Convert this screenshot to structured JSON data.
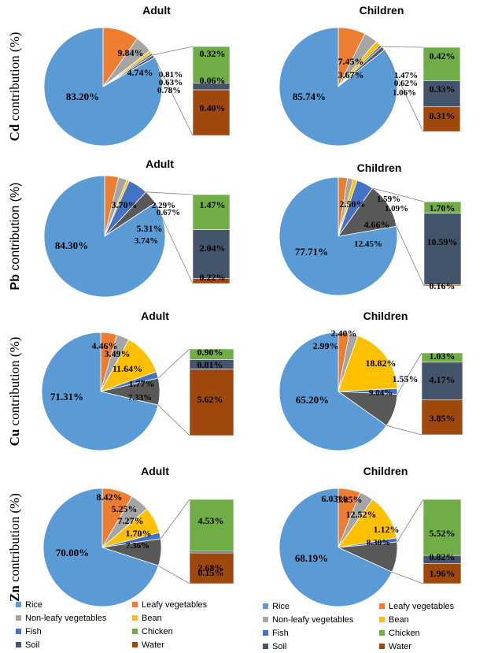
{
  "colors": {
    "Rice": "#5b9bd5",
    "Leafy vegetables": "#ed7d31",
    "Non-leafy vegetables": "#a5a5a5",
    "Bean": "#ffc000",
    "Fish": "#4472c4",
    "Chicken": "#70ad47",
    "Soil": "#44546a",
    "Water": "#9e480e"
  },
  "legend": [
    "Rice",
    "Leafy vegetables",
    "Non-leafy vegetables",
    "Bean",
    "Fish",
    "Chicken",
    "Soil",
    "Water"
  ],
  "chart_data": [
    {
      "type": "pie",
      "metal": "Cd",
      "title": "Adult",
      "ylabel_element": "Cd",
      "ylabel_rest": " contribution (%)",
      "categories": [
        "Rice",
        "Leafy vegetables",
        "Non-leafy vegetables",
        "Bean",
        "Fish",
        "Chicken",
        "Soil",
        "Water"
      ],
      "values": [
        83.2,
        9.84,
        4.74,
        0.81,
        0.63,
        0.32,
        0.06,
        0.4
      ],
      "labels": [
        "83.20%",
        "9.84%",
        "4.74%",
        "0.81%",
        "0.63%",
        "0.32%",
        "0.06%",
        "0.40%"
      ],
      "other_label": "0.78%",
      "bar": [
        "Chicken",
        "Soil",
        "Water"
      ]
    },
    {
      "type": "pie",
      "metal": "Cd",
      "title": "Children",
      "categories": [
        "Rice",
        "Leafy vegetables",
        "Non-leafy vegetables",
        "Bean",
        "Fish",
        "Chicken",
        "Soil",
        "Water"
      ],
      "values": [
        85.74,
        7.45,
        3.67,
        1.47,
        0.62,
        0.42,
        0.33,
        0.31
      ],
      "labels": [
        "85.74%",
        "7.45%",
        "3.67%",
        "1.47%",
        "0.62%",
        "0.42%",
        "0.33%",
        "0.31%"
      ],
      "other_label": "1.06%",
      "bar": [
        "Chicken",
        "Soil",
        "Water"
      ]
    },
    {
      "type": "pie",
      "metal": "Pb",
      "title": "Adult",
      "ylabel_element": "Pb",
      "ylabel_rest": " contribution (%)",
      "categories": [
        "Rice",
        "Leafy vegetables",
        "Non-leafy vegetables",
        "Bean",
        "Fish",
        "Chicken",
        "Soil",
        "Water"
      ],
      "values": [
        84.3,
        3.7,
        2.29,
        0.67,
        5.31,
        1.47,
        2.04,
        0.22
      ],
      "labels": [
        "84.30%",
        "3.70%",
        "2.29%",
        "0.67%",
        "5.31%",
        "1.47%",
        "2.04%",
        "0.22%"
      ],
      "other_label": "3.74%",
      "bar": [
        "Chicken",
        "Soil",
        "Water"
      ]
    },
    {
      "type": "pie",
      "metal": "Pb",
      "title": "Children",
      "categories": [
        "Rice",
        "Leafy vegetables",
        "Non-leafy vegetables",
        "Bean",
        "Fish",
        "Chicken",
        "Soil",
        "Water"
      ],
      "values": [
        77.71,
        2.5,
        1.59,
        1.09,
        4.66,
        1.7,
        10.59,
        0.16
      ],
      "labels": [
        "77.71%",
        "2.50%",
        "1.59%",
        "1.09%",
        "4.66%",
        "1.70%",
        "10.59%",
        "0.16%"
      ],
      "other_label": "12.45%",
      "bar": [
        "Chicken",
        "Soil",
        "Water"
      ]
    },
    {
      "type": "pie",
      "metal": "Cu",
      "title": "Adult",
      "ylabel_element": "Cu",
      "ylabel_rest": " contribution (%)",
      "categories": [
        "Rice",
        "Leafy vegetables",
        "Non-leafy vegetables",
        "Bean",
        "Fish",
        "Chicken",
        "Soil",
        "Water"
      ],
      "values": [
        71.31,
        4.46,
        3.49,
        11.64,
        1.77,
        0.9,
        0.81,
        5.62
      ],
      "labels": [
        "71.31%",
        "4.46%",
        "3.49%",
        "11.64%",
        "1.77%",
        "0.90%",
        "0.81%",
        "5.62%"
      ],
      "other_label": "7.33%",
      "bar": [
        "Chicken",
        "Soil",
        "Water"
      ]
    },
    {
      "type": "pie",
      "metal": "Cu",
      "title": "Children",
      "categories": [
        "Rice",
        "Leafy vegetables",
        "Non-leafy vegetables",
        "Bean",
        "Fish",
        "Chicken",
        "Soil",
        "Water"
      ],
      "values": [
        65.2,
        2.99,
        2.4,
        18.82,
        1.55,
        1.03,
        4.17,
        3.85
      ],
      "labels": [
        "65.20%",
        "2.99%",
        "2.40%",
        "18.82%",
        "1.55%",
        "1.03%",
        "4.17%",
        "3.85%"
      ],
      "other_label": "9.04%",
      "bar": [
        "Chicken",
        "Soil",
        "Water"
      ]
    },
    {
      "type": "pie",
      "metal": "Zn",
      "title": "Adult",
      "ylabel_element": "Zn",
      "ylabel_rest": " contribution (%)",
      "categories": [
        "Rice",
        "Leafy vegetables",
        "Non-leafy vegetables",
        "Bean",
        "Fish",
        "Chicken",
        "Soil",
        "Water"
      ],
      "values": [
        70.0,
        8.42,
        5.25,
        7.27,
        1.7,
        4.53,
        0.15,
        2.68
      ],
      "labels": [
        "70.00%",
        "8.42%",
        "5.25%",
        "7.27%",
        "1.70%",
        "4.53%",
        "0.15%",
        "2.68%"
      ],
      "other_label": "7.36%",
      "bar": [
        "Chicken",
        "Soil",
        "Water"
      ]
    },
    {
      "type": "pie",
      "metal": "Zn",
      "title": "Children",
      "categories": [
        "Rice",
        "Leafy vegetables",
        "Non-leafy vegetables",
        "Bean",
        "Fish",
        "Chicken",
        "Soil",
        "Water"
      ],
      "values": [
        68.19,
        6.03,
        3.85,
        12.52,
        1.12,
        5.52,
        0.82,
        1.96
      ],
      "labels": [
        "68.19%",
        "6.03%",
        "3.85%",
        "12.52%",
        "1.12%",
        "5.52%",
        "0.82%",
        "1.96%"
      ],
      "other_label": "8.30%",
      "bar": [
        "Chicken",
        "Soil",
        "Water"
      ]
    }
  ]
}
